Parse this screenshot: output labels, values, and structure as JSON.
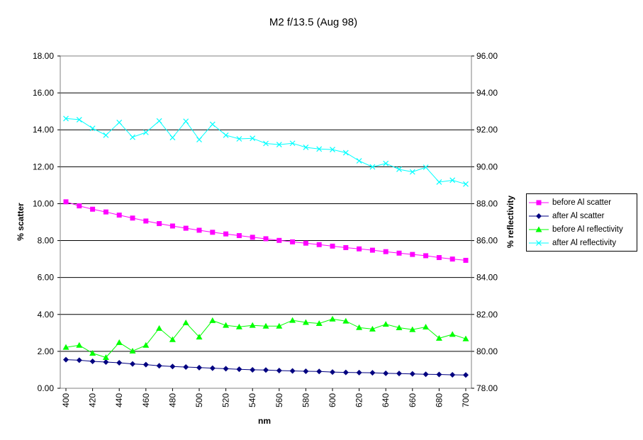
{
  "chart_data": {
    "type": "line",
    "title": "M2 f/13.5 (Aug 98)",
    "xlabel": "nm",
    "ylabel": "% scatter",
    "y2label": "% reflectivity",
    "x": [
      400,
      410,
      420,
      430,
      440,
      450,
      460,
      470,
      480,
      490,
      500,
      510,
      520,
      530,
      540,
      550,
      560,
      570,
      580,
      590,
      600,
      610,
      620,
      630,
      640,
      650,
      660,
      670,
      680,
      690,
      700
    ],
    "x_tick_labels": [
      "400",
      "420",
      "440",
      "460",
      "480",
      "500",
      "520",
      "540",
      "560",
      "580",
      "600",
      "620",
      "640",
      "660",
      "680",
      "700"
    ],
    "xlim": [
      400,
      700
    ],
    "ylim": [
      0,
      18
    ],
    "y_tick_labels": [
      "0.00",
      "2.00",
      "4.00",
      "6.00",
      "8.00",
      "10.00",
      "12.00",
      "14.00",
      "16.00",
      "18.00"
    ],
    "y2lim": [
      78,
      96
    ],
    "y2_tick_labels": [
      "78.00",
      "80.00",
      "82.00",
      "84.00",
      "86.00",
      "88.00",
      "90.00",
      "92.00",
      "94.00",
      "96.00"
    ],
    "grid": "horizontal",
    "legend_position": "right",
    "series": [
      {
        "name": "before Al scatter",
        "axis": "left",
        "color": "#ff00ff",
        "marker": "square",
        "values": [
          10.1,
          9.88,
          9.7,
          9.55,
          9.38,
          9.22,
          9.06,
          8.92,
          8.79,
          8.67,
          8.56,
          8.45,
          8.36,
          8.27,
          8.18,
          8.1,
          8.01,
          7.93,
          7.86,
          7.78,
          7.7,
          7.62,
          7.55,
          7.48,
          7.4,
          7.32,
          7.25,
          7.18,
          7.08,
          7.0,
          6.93
        ]
      },
      {
        "name": "after Al scatter",
        "axis": "left",
        "color": "#000080",
        "marker": "diamond",
        "values": [
          1.55,
          1.52,
          1.46,
          1.42,
          1.38,
          1.32,
          1.28,
          1.22,
          1.18,
          1.15,
          1.12,
          1.09,
          1.06,
          1.03,
          1.0,
          0.99,
          0.96,
          0.94,
          0.92,
          0.91,
          0.88,
          0.86,
          0.85,
          0.84,
          0.81,
          0.8,
          0.78,
          0.76,
          0.75,
          0.73,
          0.72
        ]
      },
      {
        "name": "before Al reflectivity",
        "axis": "right",
        "color": "#00ff00",
        "marker": "triangle",
        "values": [
          80.22,
          80.33,
          79.9,
          79.67,
          80.48,
          80.02,
          80.33,
          81.25,
          80.64,
          81.55,
          80.78,
          81.67,
          81.41,
          81.33,
          81.41,
          81.37,
          81.37,
          81.68,
          81.57,
          81.51,
          81.75,
          81.64,
          81.29,
          81.21,
          81.47,
          81.28,
          81.18,
          81.32,
          80.71,
          80.92,
          80.68
        ]
      },
      {
        "name": "after Al reflectivity",
        "axis": "right",
        "color": "#00ffff",
        "marker": "x",
        "values": [
          92.61,
          92.55,
          92.08,
          91.71,
          92.4,
          91.6,
          91.86,
          92.48,
          91.58,
          92.46,
          91.47,
          92.3,
          91.71,
          91.51,
          91.54,
          91.26,
          91.2,
          91.27,
          91.05,
          90.96,
          90.93,
          90.76,
          90.32,
          89.99,
          90.18,
          89.86,
          89.72,
          89.97,
          89.17,
          89.27,
          89.06
        ]
      }
    ]
  }
}
